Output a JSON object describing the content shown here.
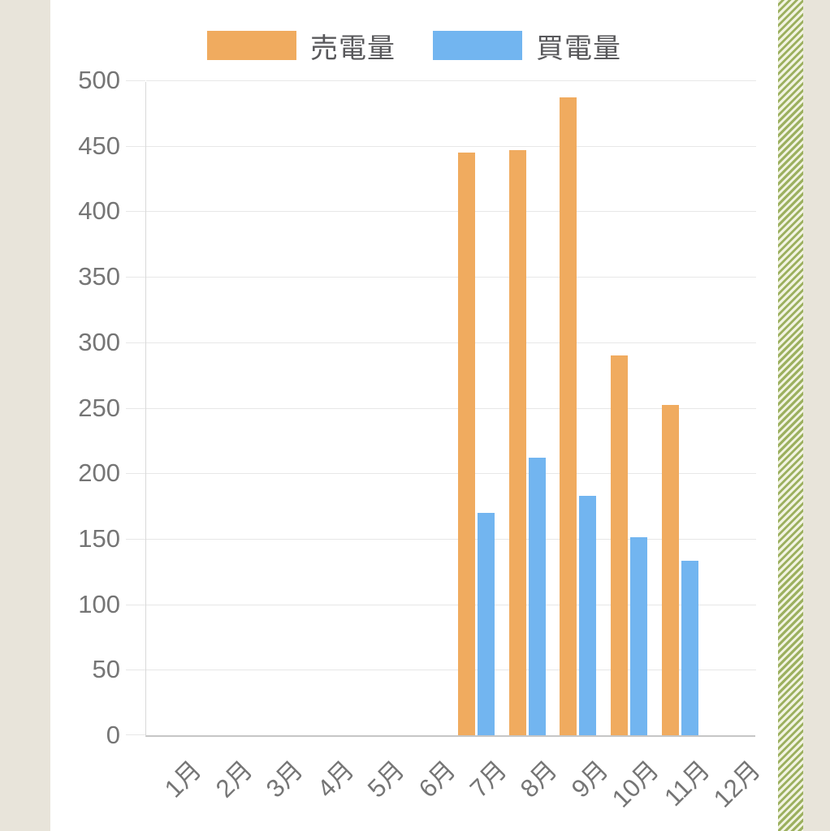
{
  "page": {
    "background": "#ffffff",
    "side_strip_color": "#e8e4da",
    "stripe_light": "#f1f3e1",
    "stripe_dark": "#9cb05f"
  },
  "chart_data": {
    "type": "bar",
    "title": "",
    "xlabel": "",
    "ylabel": "",
    "categories": [
      "1月",
      "2月",
      "3月",
      "4月",
      "5月",
      "6月",
      "7月",
      "8月",
      "9月",
      "10月",
      "11月",
      "12月"
    ],
    "series": [
      {
        "name": "売電量",
        "color": "#f0ab5f",
        "values": [
          null,
          null,
          null,
          null,
          null,
          null,
          445,
          447,
          487,
          290,
          252,
          null
        ]
      },
      {
        "name": "買電量",
        "color": "#72b5f0",
        "values": [
          null,
          null,
          null,
          null,
          null,
          null,
          170,
          212,
          183,
          151,
          133,
          null
        ]
      }
    ],
    "ylim": [
      0,
      500
    ],
    "ytick_step": 50,
    "yticks": [
      "0",
      "50",
      "100",
      "150",
      "200",
      "250",
      "300",
      "350",
      "400",
      "450",
      "500"
    ],
    "grid": "horizontal",
    "legend_position": "top",
    "colors": {
      "grid": "#e7e7e7",
      "axis": "#c6c6c6",
      "y_axis": "#d9d9d9",
      "tick_text": "#757575",
      "legend_text": "#58585b"
    }
  }
}
